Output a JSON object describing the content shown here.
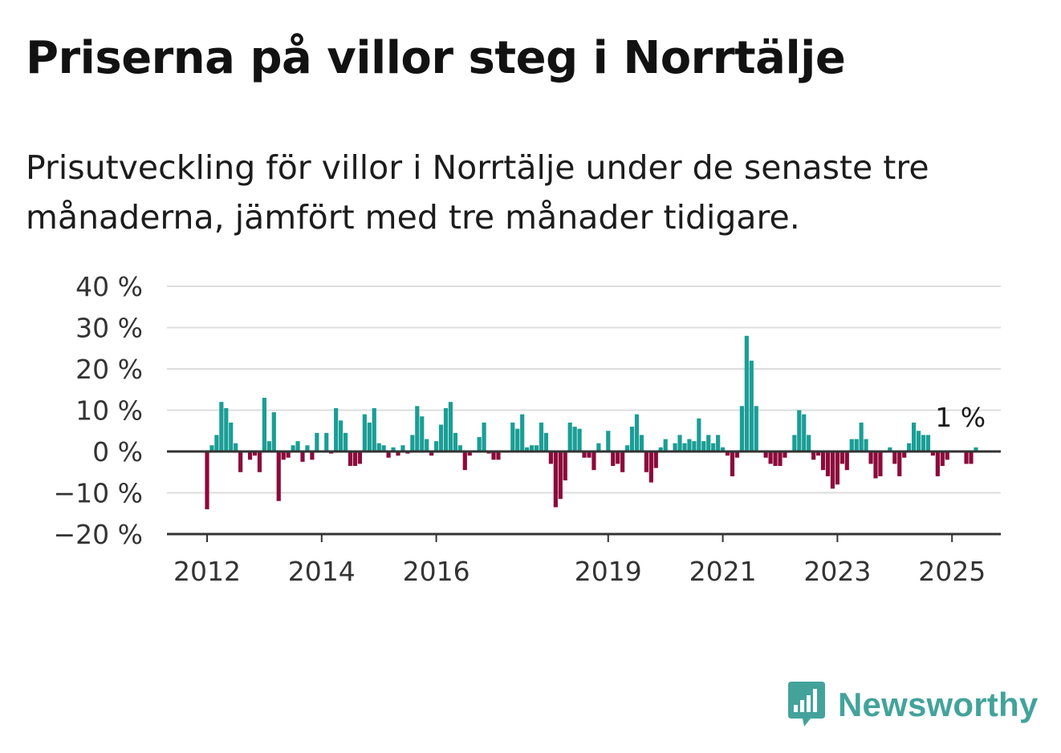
{
  "title": "Priserna på villor steg i Norrtälje",
  "subtitle": "Prisutveckling för villor i Norrtälje under de senaste tre månaderna, jämfört med tre månader tidigare.",
  "brand": {
    "name": "Newsworthy",
    "color": "#43a39b"
  },
  "colors": {
    "positive": "#1a9e96",
    "negative": "#8c0a3b",
    "grid": "#dddddd",
    "axis": "#333333"
  },
  "chart_data": {
    "type": "bar",
    "title": "",
    "xlabel": "",
    "ylabel": "",
    "ylim": [
      -20,
      40
    ],
    "y_ticks": [
      40,
      30,
      20,
      10,
      0,
      -10,
      -20
    ],
    "y_tick_labels": [
      "40 %",
      "30 %",
      "20 %",
      "10 %",
      "0 %",
      "−10 %",
      "−20 %"
    ],
    "x_tick_labels": [
      "2012",
      "2014",
      "2016",
      "2019",
      "2021",
      "2023",
      "2025"
    ],
    "x_ticks": [
      "2012-01",
      "2014-01",
      "2016-01",
      "2019-01",
      "2021-01",
      "2023-01",
      "2025-01"
    ],
    "start_month": "2012-01",
    "grid": true,
    "annotation": {
      "text": "1 %",
      "month": "2025-03",
      "value": 1
    },
    "values": [
      -14,
      1.5,
      4,
      12,
      10.5,
      7,
      2,
      -5,
      0,
      -2,
      -1,
      -5,
      13,
      2.5,
      9.5,
      -12,
      -2,
      -1.5,
      1.5,
      2.5,
      -2.5,
      1.5,
      -2,
      4.5,
      0,
      4.5,
      -0.5,
      10.5,
      7.5,
      4.5,
      -3.5,
      -3.5,
      -3,
      9,
      7,
      10.5,
      2,
      1.5,
      -1.5,
      1,
      -1,
      1.5,
      -0.5,
      4,
      11,
      8.5,
      3,
      -1,
      2.5,
      6.5,
      10.5,
      12,
      4.5,
      1.5,
      -4.5,
      -1,
      0,
      3.5,
      7,
      -0.5,
      -2,
      -2,
      0,
      0,
      7,
      5.5,
      9,
      1,
      1.5,
      1.5,
      7,
      4.5,
      -3,
      -13.5,
      -11.5,
      -7,
      7,
      6,
      5.5,
      -1.5,
      -1.5,
      -4.5,
      2,
      0,
      5,
      -3.5,
      -3,
      -5,
      1.5,
      6,
      9,
      4,
      -5,
      -7.5,
      -4,
      1,
      3,
      0,
      2,
      4,
      2,
      3,
      2.5,
      8,
      2.5,
      4,
      2,
      4,
      1,
      -1,
      -6,
      -1.5,
      11,
      28,
      22,
      11,
      0,
      -1.5,
      -3,
      -3.5,
      -3.5,
      -1.5,
      0,
      4,
      10,
      9,
      4,
      -2,
      -1,
      -4.5,
      -6,
      -9,
      -8,
      -3,
      -4.5,
      3,
      3,
      7,
      3,
      -3,
      -6.5,
      -6,
      0,
      1,
      -3,
      -6,
      -1.5,
      2,
      7,
      5,
      4,
      4,
      -1,
      -6,
      -3.5,
      -2,
      0,
      0,
      0,
      -3,
      -3,
      1
    ]
  }
}
